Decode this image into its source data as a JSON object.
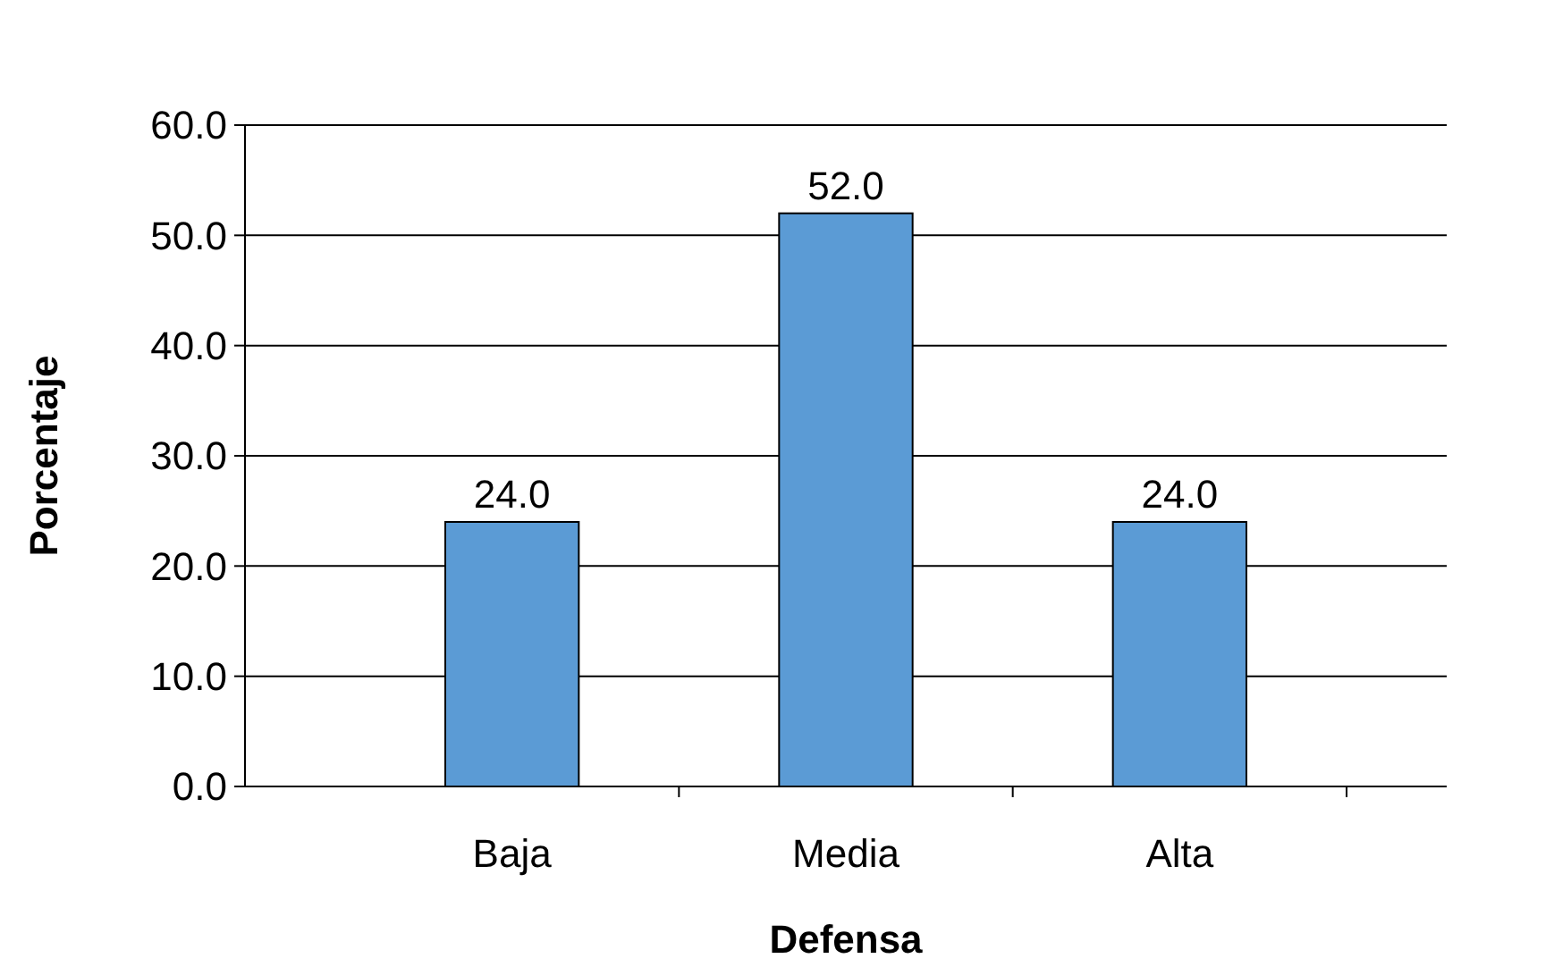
{
  "chart_data": {
    "type": "bar",
    "xlabel": "Defensa",
    "ylabel": "Porcentaje",
    "categories": [
      "Baja",
      "Media",
      "Alta"
    ],
    "values": [
      24,
      52,
      24
    ],
    "color": "#5b9bd5",
    "value_labels": [
      "24.0",
      "52.0",
      "24.0"
    ],
    "ylim": [
      0,
      60
    ],
    "yticks": [
      {
        "value": 0,
        "label": "0.0"
      },
      {
        "value": 10,
        "label": "10.0"
      },
      {
        "value": 20,
        "label": "20.0"
      },
      {
        "value": 30,
        "label": "30.0"
      },
      {
        "value": 40,
        "label": "40.0"
      },
      {
        "value": 50,
        "label": "50.0"
      },
      {
        "value": 60,
        "label": "60.0"
      }
    ],
    "grid": "y"
  }
}
